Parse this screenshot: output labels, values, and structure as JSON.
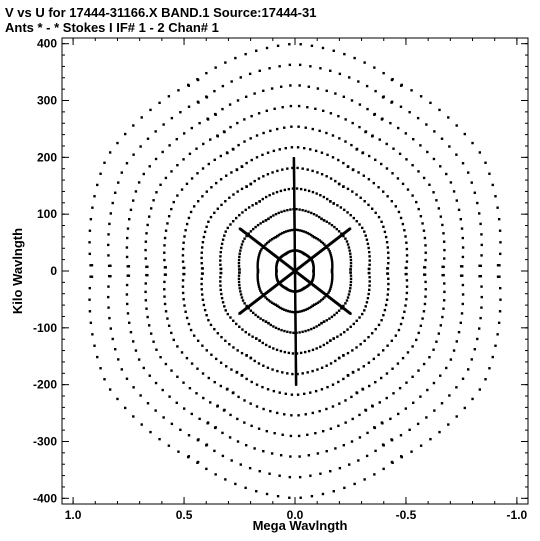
{
  "chart_data": {
    "type": "scatter",
    "title": "V vs U for 17444-31166.X BAND.1   Source:17444-31",
    "subtitle": "Ants * - *    Stokes I   IF# 1 - 2  Chan# 1",
    "xlabel": "Mega Wavlngth",
    "ylabel": "Kilo Wavlngth",
    "xlim": [
      1.05,
      -1.05
    ],
    "ylim": [
      -410,
      410
    ],
    "x_ticks": [
      1.0,
      0.5,
      0.0,
      -0.5,
      -1.0
    ],
    "x_tick_labels": [
      "1.0",
      "0.5",
      "0.0",
      "-0.5",
      "-1.0"
    ],
    "y_ticks": [
      400,
      300,
      200,
      100,
      0,
      -100,
      -200,
      -300,
      -400
    ],
    "y_tick_labels": [
      "400",
      "300",
      "200",
      "100",
      "0",
      "-100",
      "-200",
      "-300",
      "-400"
    ],
    "grid": false,
    "legend": "none",
    "marker_color": "#000000",
    "coverage": {
      "description_values_only": true,
      "arms_angles_deg": [
        90,
        30,
        -30
      ],
      "arm_u_extent": [
        1.0,
        -1.0
      ],
      "arm_v_extent": [
        -400,
        400
      ]
    }
  }
}
